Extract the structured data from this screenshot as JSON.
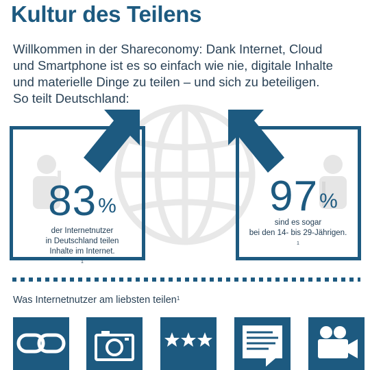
{
  "title": "Kultur des Teilens",
  "intro_lines": [
    "Willkommen in der Shareconomy: Dank Internet, Cloud",
    "und Smartphone ist es so einfach wie nie, digitale Inhalte",
    "und materielle Dinge zu teilen – und sich zu beteiligen.",
    "So teilt Deutschland:"
  ],
  "stats": [
    {
      "value": "83",
      "unit": "%",
      "caption_lines": [
        "der Internetnutzer",
        "in Deutschland teilen",
        "Inhalte im Internet."
      ],
      "footnote": "1"
    },
    {
      "value": "97",
      "unit": "%",
      "caption_lines": [
        "sind es sogar",
        "bei den 14- bis 29-Jährigen."
      ],
      "footnote": "1"
    }
  ],
  "subtitle": "Was Internetnutzer am liebsten teilen",
  "subtitle_footnote": "1",
  "categories": [
    {
      "icon": "link-icon"
    },
    {
      "icon": "camera-icon"
    },
    {
      "icon": "rating-stars-icon"
    },
    {
      "icon": "document-icon"
    },
    {
      "icon": "video-camera-icon"
    }
  ],
  "colors": {
    "accent": "#1d5a80",
    "text": "#2a4256",
    "light_gray": "#e6e6e6"
  }
}
